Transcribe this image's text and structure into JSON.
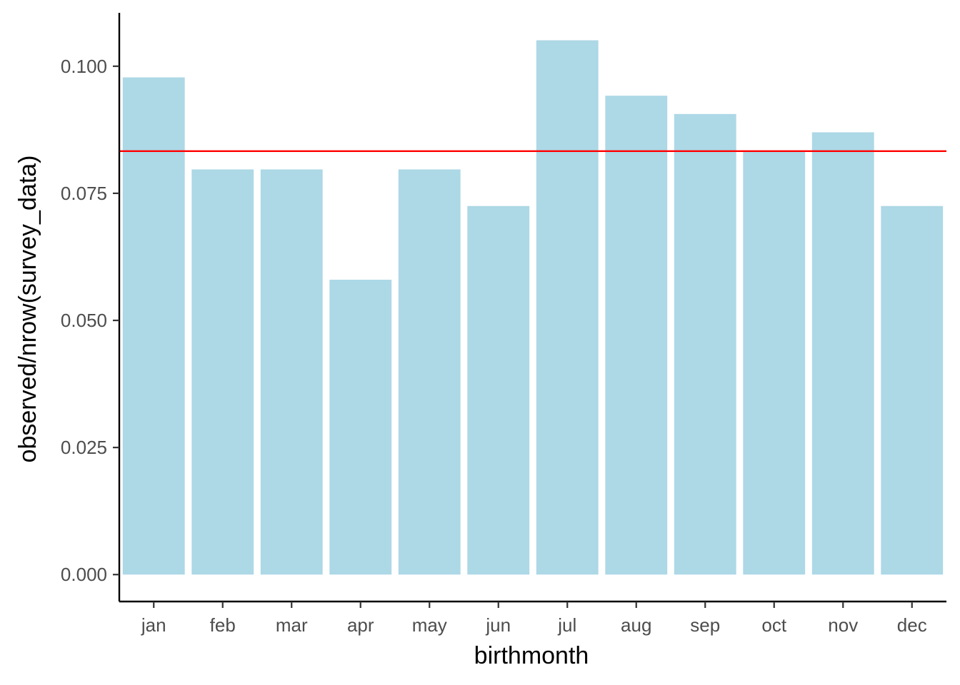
{
  "chart_data": {
    "type": "bar",
    "title": "",
    "xlabel": "birthmonth",
    "ylabel": "observed/nrow(survey_data)",
    "categories": [
      "jan",
      "feb",
      "mar",
      "apr",
      "may",
      "jun",
      "jul",
      "aug",
      "sep",
      "oct",
      "nov",
      "dec"
    ],
    "values": [
      0.0978,
      0.0797,
      0.0797,
      0.058,
      0.0797,
      0.0725,
      0.1051,
      0.0942,
      0.0906,
      0.0833,
      0.087,
      0.0725
    ],
    "ylim": [
      -0.0053,
      0.1105
    ],
    "yticks": [
      0.0,
      0.025,
      0.05,
      0.075,
      0.1
    ],
    "ytick_labels": [
      "0.000",
      "0.025",
      "0.050",
      "0.075",
      "0.100"
    ],
    "reference_line": {
      "y": 0.0833
    },
    "grid": false,
    "legend": "none",
    "colors": {
      "bar": "#add8e6",
      "reference_line": "#ff0000",
      "axis": "#000000",
      "tick_label": "#4d4d4d"
    }
  }
}
